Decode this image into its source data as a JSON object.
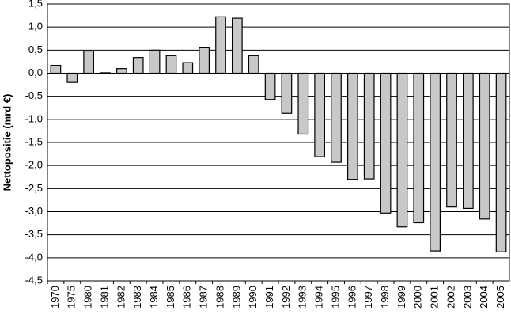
{
  "chart_data": {
    "type": "bar",
    "y_label": "Nettopositie (mrd €)",
    "categories": [
      "1970",
      "1975",
      "1980",
      "1981",
      "1982",
      "1983",
      "1984",
      "1985",
      "1986",
      "1987",
      "1988",
      "1989",
      "1990",
      "1991",
      "1992",
      "1993",
      "1994",
      "1995",
      "1996",
      "1997",
      "1998",
      "1999",
      "2000",
      "2001",
      "2002",
      "2003",
      "2004",
      "2005"
    ],
    "values": [
      0.17,
      -0.2,
      0.48,
      0.01,
      0.1,
      0.34,
      0.5,
      0.38,
      0.23,
      0.55,
      1.22,
      1.19,
      0.38,
      -0.57,
      -0.87,
      -1.32,
      -1.81,
      -1.93,
      -2.3,
      -2.29,
      -3.03,
      -3.33,
      -3.24,
      -3.85,
      -2.9,
      -2.93,
      -3.16,
      -3.87
    ],
    "color": "#c8c8c8",
    "ylim": [
      -4.5,
      1.5
    ],
    "yticks": [
      {
        "value": 1.5,
        "label": "1,5"
      },
      {
        "value": 1.0,
        "label": "1,0"
      },
      {
        "value": 0.5,
        "label": "0,5"
      },
      {
        "value": 0.0,
        "label": "0,0"
      },
      {
        "value": -0.5,
        "label": "-0,5"
      },
      {
        "value": -1.0,
        "label": "-1,0"
      },
      {
        "value": -1.5,
        "label": "-1,5"
      },
      {
        "value": -2.0,
        "label": "-2,0"
      },
      {
        "value": -2.5,
        "label": "-2,5"
      },
      {
        "value": -3.0,
        "label": "-3,0"
      },
      {
        "value": -3.5,
        "label": "-3,5"
      },
      {
        "value": -4.0,
        "label": "-4,0"
      },
      {
        "value": -4.5,
        "label": "-4,5"
      }
    ],
    "grid": true
  }
}
